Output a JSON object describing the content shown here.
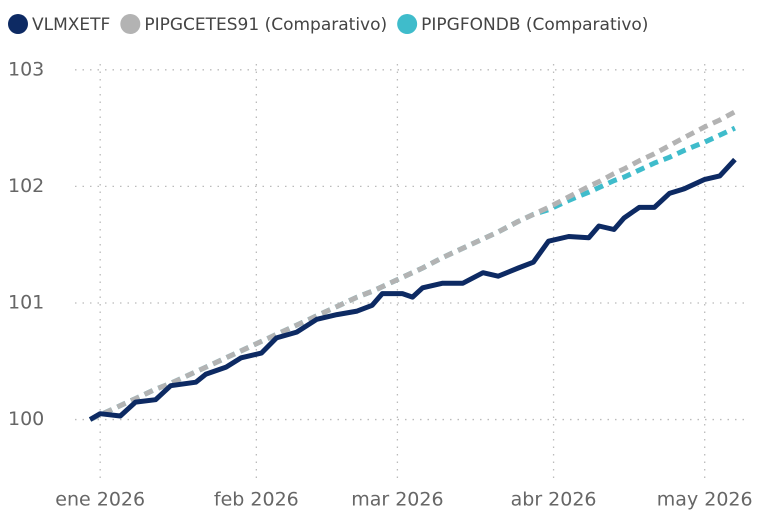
{
  "chart_data": {
    "type": "line",
    "x": [
      -2,
      0,
      4,
      7,
      11,
      14,
      19,
      21,
      25,
      28,
      32,
      35,
      39,
      43,
      47,
      51,
      54,
      56,
      60,
      62,
      64,
      68,
      72,
      76,
      79,
      83,
      86,
      89,
      93,
      97,
      99,
      102,
      104,
      107,
      110,
      113,
      116,
      120,
      123,
      126
    ],
    "series": [
      {
        "name": "VLMXETF",
        "color": "#0d2a63",
        "style": "solid",
        "values": [
          100.0,
          100.05,
          100.03,
          100.15,
          100.17,
          100.29,
          100.32,
          100.39,
          100.45,
          100.53,
          100.57,
          100.7,
          100.75,
          100.86,
          100.9,
          100.93,
          100.98,
          101.08,
          101.08,
          101.05,
          101.13,
          101.17,
          101.17,
          101.26,
          101.23,
          101.3,
          101.35,
          101.53,
          101.57,
          101.56,
          101.66,
          101.63,
          101.73,
          101.82,
          101.82,
          101.94,
          101.98,
          102.06,
          102.09,
          102.23
        ]
      },
      {
        "name": "PIPGCETES91 (Comparativo)",
        "color": "#b3b3b3",
        "style": "dashed",
        "values": [
          100.0,
          100.04,
          100.12,
          100.18,
          100.26,
          100.31,
          100.41,
          100.45,
          100.53,
          100.59,
          100.67,
          100.73,
          100.81,
          100.89,
          100.97,
          101.05,
          101.1,
          101.14,
          101.22,
          101.26,
          101.3,
          101.39,
          101.47,
          101.55,
          101.61,
          101.7,
          101.76,
          101.82,
          101.91,
          102.0,
          102.04,
          102.11,
          102.15,
          102.22,
          102.28,
          102.35,
          102.42,
          102.51,
          102.57,
          102.64
        ]
      },
      {
        "name": "PIPGFONDB (Comparativo)",
        "color": "#3fbccb",
        "style": "dashed",
        "values": [
          100.0,
          100.04,
          100.12,
          100.18,
          100.26,
          100.31,
          100.41,
          100.45,
          100.53,
          100.59,
          100.67,
          100.73,
          100.81,
          100.89,
          100.97,
          101.05,
          101.1,
          101.14,
          101.22,
          101.26,
          101.3,
          101.39,
          101.47,
          101.55,
          101.61,
          101.7,
          101.76,
          101.8,
          101.88,
          101.95,
          101.99,
          102.05,
          102.08,
          102.14,
          102.2,
          102.25,
          102.31,
          102.38,
          102.44,
          102.5
        ]
      }
    ],
    "xlim": [
      -5,
      128
    ],
    "xticks": [
      {
        "value": 0,
        "label": "ene 2026"
      },
      {
        "value": 31,
        "label": "feb 2026"
      },
      {
        "value": 59,
        "label": "mar 2026"
      },
      {
        "value": 90,
        "label": "abr 2026"
      },
      {
        "value": 120,
        "label": "may 2026"
      }
    ],
    "ylim": [
      99.55,
      103.05
    ],
    "yticks": [
      100,
      101,
      102,
      103
    ],
    "grid": true,
    "legend": "top-left"
  }
}
